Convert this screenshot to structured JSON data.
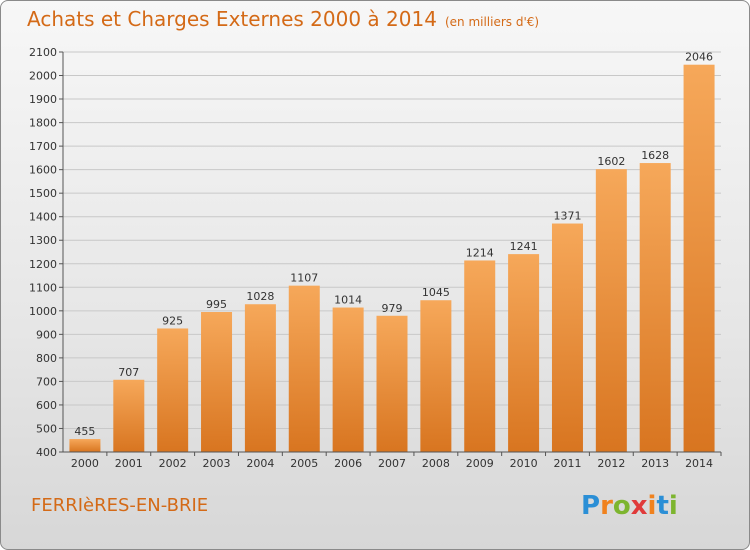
{
  "title": "Achats et Charges Externes 2000 à 2014",
  "subtitle": "(en milliers d'€)",
  "location": "FERRIèRES-EN-BRIE",
  "brand": {
    "letters": [
      "P",
      "r",
      "o",
      "x",
      "i",
      "t",
      "i"
    ],
    "colors": [
      "#2b8fd6",
      "#f0821e",
      "#7db52f",
      "#e03a3a",
      "#f0821e",
      "#2b8fd6",
      "#7db52f"
    ]
  },
  "colors": {
    "bar_top": "#f6a85a",
    "bar_bottom": "#d87520",
    "grid": "#c8c8c8",
    "text": "#333333",
    "accent": "#d46a17"
  },
  "chart_data": {
    "type": "bar",
    "title": "Achats et Charges Externes 2000 à 2014",
    "subtitle": "(en milliers d'€)",
    "categories": [
      "2000",
      "2001",
      "2002",
      "2003",
      "2004",
      "2005",
      "2006",
      "2007",
      "2008",
      "2009",
      "2010",
      "2011",
      "2012",
      "2013",
      "2014"
    ],
    "values": [
      455,
      707,
      925,
      995,
      1028,
      1107,
      1014,
      979,
      1045,
      1214,
      1241,
      1371,
      1602,
      1628,
      2046
    ],
    "ylim": [
      400,
      2100
    ],
    "yticks": [
      400,
      500,
      600,
      700,
      800,
      900,
      1000,
      1100,
      1200,
      1300,
      1400,
      1500,
      1600,
      1700,
      1800,
      1900,
      2000,
      2100
    ],
    "grid": true
  }
}
